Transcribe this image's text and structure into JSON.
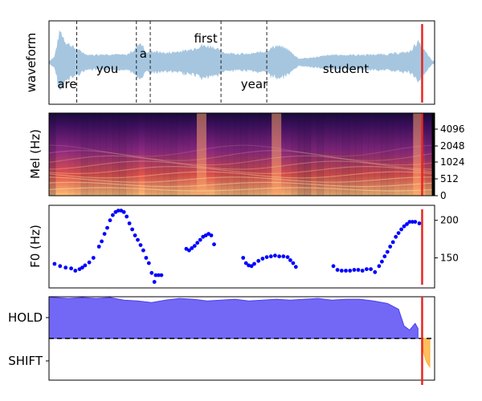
{
  "chart_data": [
    {
      "type": "area",
      "ylabel": "waveform",
      "words": [
        {
          "text": "are",
          "t": 0.045
        },
        {
          "text": "you",
          "t": 0.19
        },
        {
          "text": "a",
          "t": 0.32
        },
        {
          "text": "first",
          "t": 0.545
        },
        {
          "text": "year",
          "t": 0.72
        },
        {
          "text": "student",
          "t": 1.05
        }
      ],
      "word_boundaries": [
        0.08,
        0.295,
        0.345,
        0.6,
        0.765
      ],
      "cursor_time": 1.325,
      "xlim": [
        -0.02,
        1.37
      ],
      "ylim": [
        -1,
        1
      ],
      "colors": {
        "waveform": "#a6c6e0",
        "cursor": "#e8261f",
        "boundary": "#222222"
      }
    },
    {
      "type": "heatmap",
      "ylabel": "Mel (Hz)",
      "yticks": [
        "0",
        "512",
        "1024",
        "2048",
        "4096"
      ],
      "cursor_time": 1.325,
      "silence_start": 1.36,
      "colormap": [
        "#000004",
        "#3b0f70",
        "#8c2981",
        "#de4968",
        "#fe9f6d",
        "#fcfdbf"
      ]
    },
    {
      "type": "scatter",
      "ylabel": "F0 (Hz)",
      "yticks": [
        150,
        200
      ],
      "ylim": [
        110,
        220
      ],
      "color": "#0000ff",
      "cursor_time": 1.325,
      "segments": [
        {
          "x": [
            0.0,
            0.02,
            0.04,
            0.06,
            0.075,
            0.09,
            0.1,
            0.11,
            0.125,
            0.14,
            0.16,
            0.17,
            0.18,
            0.19,
            0.2,
            0.21,
            0.22,
            0.23,
            0.24,
            0.25,
            0.26,
            0.27,
            0.28,
            0.29,
            0.3,
            0.31,
            0.32,
            0.33,
            0.34,
            0.35,
            0.36
          ],
          "y": [
            142,
            139,
            137,
            136,
            133,
            135,
            137,
            140,
            144,
            150,
            165,
            172,
            182,
            190,
            200,
            207,
            211,
            213,
            213,
            211,
            205,
            196,
            188,
            180,
            174,
            167,
            160,
            150,
            143,
            130,
            118
          ]
        },
        {
          "x": [
            0.365,
            0.375,
            0.385
          ],
          "y": [
            127,
            127,
            127
          ]
        },
        {
          "x": [
            0.475,
            0.485,
            0.495,
            0.505,
            0.515,
            0.525,
            0.535,
            0.545,
            0.555,
            0.565,
            0.575
          ],
          "y": [
            162,
            160,
            163,
            166,
            170,
            174,
            178,
            180,
            182,
            180,
            168
          ]
        },
        {
          "x": [
            0.68,
            0.69,
            0.7,
            0.71,
            0.72,
            0.735,
            0.75,
            0.765,
            0.78,
            0.795,
            0.81,
            0.825,
            0.84,
            0.85,
            0.86,
            0.87
          ],
          "y": [
            150,
            143,
            140,
            139,
            142,
            146,
            149,
            151,
            152,
            153,
            152,
            152,
            151,
            147,
            143,
            138
          ]
        },
        {
          "x": [
            1.005,
            1.02,
            1.035,
            1.05,
            1.065,
            1.08,
            1.095,
            1.11,
            1.125,
            1.14,
            1.155,
            1.17,
            1.18,
            1.19,
            1.2,
            1.21,
            1.22,
            1.23,
            1.24,
            1.25,
            1.26,
            1.27,
            1.28,
            1.29,
            1.3,
            1.315
          ],
          "y": [
            139,
            134,
            133,
            133,
            133,
            134,
            134,
            133,
            135,
            135,
            131,
            139,
            145,
            152,
            158,
            165,
            171,
            178,
            183,
            188,
            192,
            195,
            198,
            198,
            198,
            196
          ]
        }
      ]
    },
    {
      "type": "area",
      "yticks": [
        "HOLD",
        "SHIFT"
      ],
      "threshold": 0.5,
      "cursor_time": 1.325,
      "colors": {
        "hold": "#4a3df2",
        "shift": "#ffad30",
        "threshold": "#000000",
        "cursor": "#e8261f"
      },
      "hold_series": {
        "x": [
          -0.02,
          0.0,
          0.05,
          0.1,
          0.15,
          0.2,
          0.25,
          0.3,
          0.35,
          0.4,
          0.45,
          0.5,
          0.55,
          0.6,
          0.65,
          0.7,
          0.75,
          0.8,
          0.85,
          0.9,
          0.95,
          1.0,
          1.05,
          1.1,
          1.15,
          1.2,
          1.24,
          1.26,
          1.28,
          1.3,
          1.31
        ],
        "y": [
          1.0,
          0.99,
          0.98,
          0.99,
          0.98,
          0.99,
          0.96,
          0.95,
          0.93,
          0.96,
          0.98,
          0.97,
          0.95,
          0.96,
          0.97,
          0.95,
          0.96,
          0.97,
          0.96,
          0.97,
          0.98,
          0.96,
          0.97,
          0.97,
          0.95,
          0.92,
          0.85,
          0.65,
          0.6,
          0.68,
          0.62
        ]
      },
      "shift_series": {
        "x": [
          1.325,
          1.33,
          1.34,
          1.36,
          1.4,
          1.45,
          1.5,
          1.55,
          1.6,
          1.65
        ],
        "y": [
          0.46,
          0.43,
          0.4,
          0.36,
          0.32,
          0.27,
          0.23,
          0.2,
          0.18,
          0.16
        ]
      }
    }
  ]
}
